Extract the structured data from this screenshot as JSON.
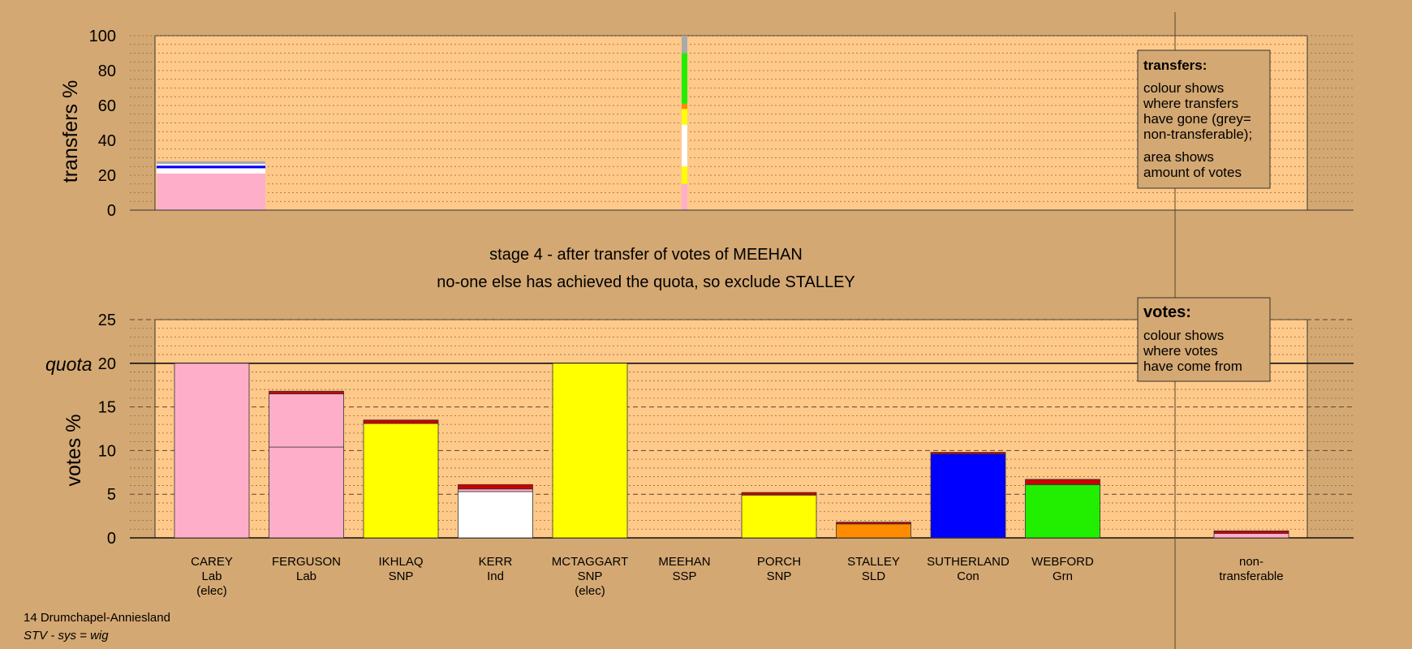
{
  "colors": {
    "background": "#d4a872",
    "plot_area": "#ffc98a",
    "lab": "#ffaec9",
    "snp": "#ffff00",
    "ind": "#ffffff",
    "sld": "#ff8c00",
    "con": "#0000ff",
    "grn": "#22ee00",
    "ssp": "#cc0000",
    "nontransferable": "#aaaaaa"
  },
  "title": {
    "line1": "stage 4 - after transfer of votes of MEEHAN",
    "line2": "no-one else has achieved the quota, so exclude STALLEY"
  },
  "footer": {
    "constituency": "14 Drumchapel-Anniesland",
    "system": "STV - sys = wig"
  },
  "legends": {
    "transfers_title": "transfers:",
    "transfers_lines": [
      "colour shows",
      "where transfers",
      "have gone (grey=",
      "non-transferable);"
    ],
    "transfers_lines2": [
      "area shows",
      "amount of votes"
    ],
    "votes_title": "votes:",
    "votes_lines": [
      "colour shows",
      "where votes",
      "have come from"
    ]
  },
  "chart_data": [
    {
      "type": "bar",
      "name": "transfers",
      "ylabel": "transfers %",
      "ylim": [
        0,
        100
      ],
      "yticks": [
        0,
        20,
        40,
        60,
        80,
        100
      ],
      "grid": true,
      "legend_position": "top-right",
      "bars": [
        {
          "label": "CAREY",
          "segments": [
            {
              "party": "lab",
              "value": 21
            },
            {
              "party": "ind",
              "value": 3
            },
            {
              "party": "con",
              "value": 1.5
            },
            {
              "party": "ind",
              "value": 1
            },
            {
              "party": "nontransferable",
              "value": 1.5
            }
          ]
        },
        {
          "label": "MEEHAN",
          "segments": [
            {
              "party": "lab",
              "value": 15
            },
            {
              "party": "snp",
              "value": 10
            },
            {
              "party": "ind",
              "value": 24
            },
            {
              "party": "snp",
              "value": 9
            },
            {
              "party": "sld",
              "value": 3
            },
            {
              "party": "grn",
              "value": 29
            },
            {
              "party": "nontransferable",
              "value": 10
            }
          ]
        }
      ]
    },
    {
      "type": "bar",
      "name": "votes",
      "ylabel": "votes %",
      "ylim": [
        0,
        25
      ],
      "yticks": [
        0,
        5,
        10,
        15,
        20,
        25
      ],
      "quota": 20,
      "quota_label": "quota",
      "grid": true,
      "legend_position": "top-right",
      "candidates": [
        {
          "name": "CAREY",
          "party": "Lab",
          "status": "(elec)",
          "segments": [
            {
              "party": "lab",
              "value": 20
            }
          ]
        },
        {
          "name": "FERGUSON",
          "party": "Lab",
          "status": "",
          "segments": [
            {
              "party": "lab",
              "value": 10.4
            },
            {
              "party": "lab",
              "value": 6.1
            },
            {
              "party": "ssp",
              "value": 0.3
            }
          ]
        },
        {
          "name": "IKHLAQ",
          "party": "SNP",
          "status": "",
          "segments": [
            {
              "party": "snp",
              "value": 13.1
            },
            {
              "party": "ssp",
              "value": 0.4
            }
          ]
        },
        {
          "name": "KERR",
          "party": "Ind",
          "status": "",
          "segments": [
            {
              "party": "ind",
              "value": 5.3
            },
            {
              "party": "lab",
              "value": 0.3
            },
            {
              "party": "ssp",
              "value": 0.5
            }
          ]
        },
        {
          "name": "MCTAGGART",
          "party": "SNP",
          "status": "(elec)",
          "segments": [
            {
              "party": "snp",
              "value": 20
            }
          ]
        },
        {
          "name": "MEEHAN",
          "party": "SSP",
          "status": "",
          "segments": []
        },
        {
          "name": "PORCH",
          "party": "SNP",
          "status": "",
          "segments": [
            {
              "party": "snp",
              "value": 4.9
            },
            {
              "party": "ssp",
              "value": 0.3
            }
          ]
        },
        {
          "name": "STALLEY",
          "party": "SLD",
          "status": "",
          "segments": [
            {
              "party": "sld",
              "value": 1.6
            },
            {
              "party": "ssp",
              "value": 0.2
            }
          ]
        },
        {
          "name": "SUTHERLAND",
          "party": "Con",
          "status": "",
          "segments": [
            {
              "party": "con",
              "value": 9.6
            },
            {
              "party": "ssp",
              "value": 0.2
            }
          ]
        },
        {
          "name": "WEBFORD",
          "party": "Grn",
          "status": "",
          "segments": [
            {
              "party": "grn",
              "value": 6.1
            },
            {
              "party": "ssp",
              "value": 0.6
            }
          ]
        }
      ],
      "nontransferable": {
        "label_line1": "non-",
        "label_line2": "transferable",
        "segments": [
          {
            "party": "lab",
            "value": 0.5
          },
          {
            "party": "ssp",
            "value": 0.3
          }
        ]
      }
    }
  ]
}
